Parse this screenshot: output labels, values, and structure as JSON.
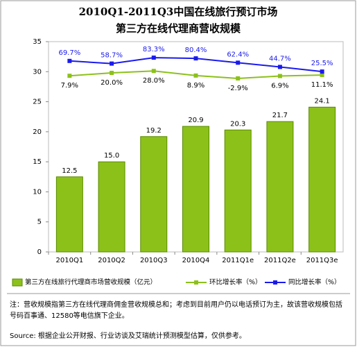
{
  "chart_data": {
    "type": "bar",
    "title": "2010Q1-2011Q3中国在线旅行预订市场",
    "subtitle": "第三方在线代理商营收规模",
    "categories": [
      "2010Q1",
      "2010Q2",
      "2010Q3",
      "2010Q4",
      "2011Q1e",
      "2011Q2e",
      "2011Q3e"
    ],
    "series": [
      {
        "name": "第三方在线旅行代理商市场营收规模（亿元）",
        "type": "bar",
        "color": "#8cc11a",
        "values": [
          12.5,
          15.0,
          19.2,
          20.9,
          20.3,
          21.7,
          24.1
        ],
        "value_labels": [
          "12.5",
          "15.0",
          "19.2",
          "20.9",
          "20.3",
          "21.7",
          "24.1"
        ]
      },
      {
        "name": "环比增长率（%）",
        "type": "line",
        "axis": "y2",
        "color": "#8cc11a",
        "values": [
          7.9,
          20.0,
          28.0,
          8.9,
          -2.9,
          6.9,
          11.1
        ],
        "value_labels": [
          "7.9%",
          "20.0%",
          "28.0%",
          "8.9%",
          "-2.9%",
          "6.9%",
          "11.1%"
        ]
      },
      {
        "name": "同比增长率（%）",
        "type": "line",
        "axis": "y2",
        "color": "#1a1aee",
        "values": [
          69.7,
          58.7,
          83.3,
          80.4,
          62.4,
          44.7,
          25.5
        ],
        "value_labels": [
          "69.7%",
          "58.7%",
          "83.3%",
          "80.4%",
          "62.4%",
          "44.7%",
          "25.5%"
        ]
      }
    ],
    "ylim": [
      0,
      35
    ],
    "yticks": [
      0,
      5,
      10,
      15,
      20,
      25,
      30,
      35
    ],
    "y2lim": [
      -725,
      150
    ],
    "grid": false,
    "notes": "注：营收规模指第三方在线代理商佣金营收规模总和；考虑到目前用户仍以电话预订为主，故该营收规模包括号码百事通、12580等电信旗下企业。",
    "source": "Source: 根据企业公开财报、行业访谈及艾瑞统计预测模型估算，仅供参考。"
  }
}
